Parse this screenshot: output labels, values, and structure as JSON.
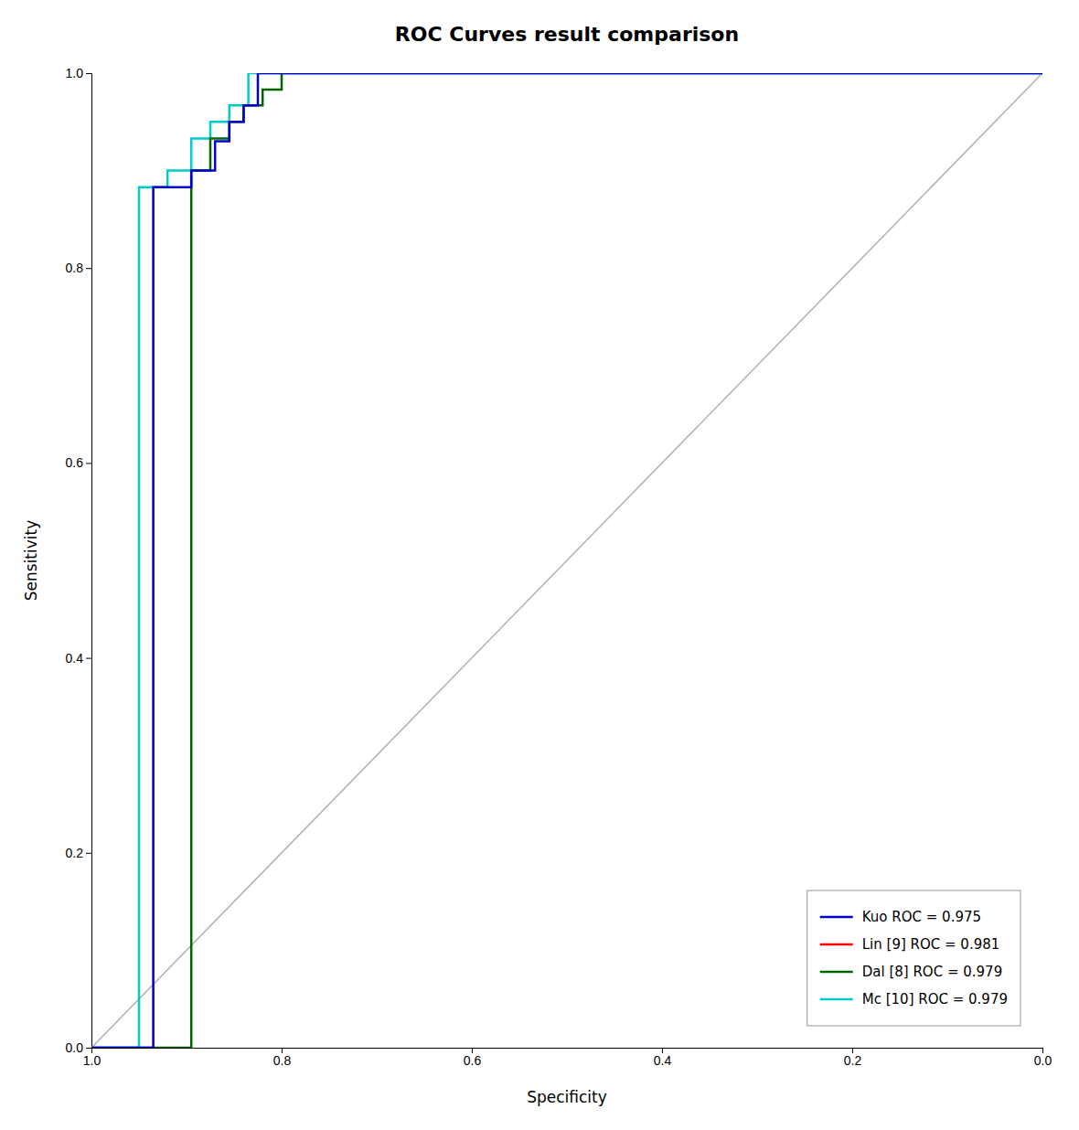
{
  "chart_data": {
    "type": "line",
    "title": "ROC Curves result comparison",
    "x_label": "Specificity",
    "y_label": "Sensitivity",
    "series": [
      {
        "name": "Kuo ROC = 0.975",
        "color": "#0000cc",
        "x": [
          1.0,
          0.935,
          0.935,
          0.895,
          0.895,
          0.87,
          0.87,
          0.855,
          0.855,
          0.84,
          0.84,
          0.825,
          0.825,
          0.0
        ],
        "values": [
          0.0,
          0.0,
          0.883,
          0.883,
          0.9,
          0.9,
          0.93,
          0.93,
          0.95,
          0.95,
          0.967,
          0.967,
          1.0,
          1.0
        ]
      },
      {
        "name": "Lin [9] ROC = 0.981",
        "color": "#ff0000",
        "x": [],
        "values": []
      },
      {
        "name": "Dal [8] ROC = 0.979",
        "color": "#006400",
        "x": [
          1.0,
          0.895,
          0.895,
          0.875,
          0.875,
          0.855,
          0.855,
          0.84,
          0.84,
          0.82,
          0.82,
          0.8,
          0.8,
          0.0
        ],
        "values": [
          0.0,
          0.0,
          0.9,
          0.9,
          0.933,
          0.933,
          0.95,
          0.95,
          0.967,
          0.967,
          0.983,
          0.983,
          1.0,
          1.0
        ]
      },
      {
        "name": "Mc [10] ROC = 0.979",
        "color": "#00cccc",
        "x": [
          1.0,
          0.95,
          0.95,
          0.92,
          0.92,
          0.895,
          0.895,
          0.875,
          0.875,
          0.855,
          0.855,
          0.835,
          0.835,
          0.0
        ],
        "values": [
          0.0,
          0.0,
          0.883,
          0.883,
          0.9,
          0.9,
          0.933,
          0.933,
          0.95,
          0.95,
          0.967,
          0.967,
          1.0,
          1.0
        ]
      }
    ],
    "reference_line": {
      "x": [
        1.0,
        0.0
      ],
      "values": [
        0.0,
        1.0
      ],
      "color": "#b0b0b0"
    },
    "xlim": [
      1.0,
      0.0
    ],
    "ylim": [
      0.0,
      1.0
    ],
    "xticks": [
      {
        "value": 1.0,
        "label": "1.0"
      },
      0.8,
      0.6,
      0.4,
      0.2,
      {
        "value": 0.0,
        "label": "0.0"
      }
    ],
    "yticks": [
      {
        "value": 0.0,
        "label": "0.0"
      },
      0.2,
      0.4,
      0.6,
      0.8,
      {
        "value": 1.0,
        "label": "1.0"
      }
    ],
    "grid": false,
    "legend": "lower right"
  }
}
